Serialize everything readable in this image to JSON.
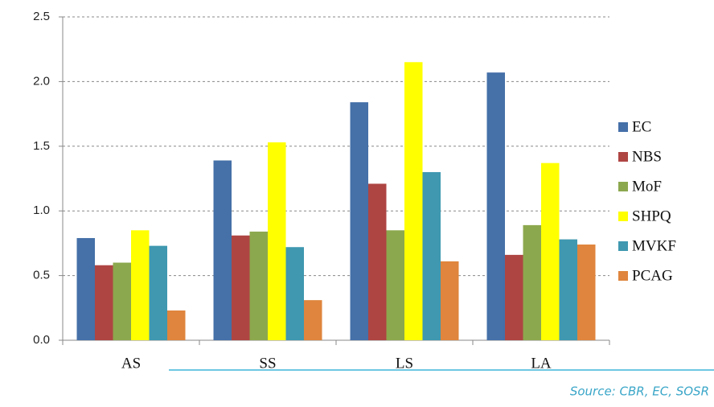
{
  "chart_data": {
    "type": "bar",
    "categories": [
      "AS",
      "SS",
      "LS",
      "LA"
    ],
    "series": [
      {
        "name": "EC",
        "color": "#4570a8",
        "values": [
          0.79,
          1.39,
          1.84,
          2.07
        ]
      },
      {
        "name": "NBS",
        "color": "#ae4543",
        "values": [
          0.58,
          0.81,
          1.21,
          0.66
        ]
      },
      {
        "name": "MoF",
        "color": "#8ca84e",
        "values": [
          0.6,
          0.84,
          0.85,
          0.89
        ]
      },
      {
        "name": "SHPQ",
        "color": "#ffff00",
        "values": [
          0.85,
          1.53,
          2.15,
          1.37
        ]
      },
      {
        "name": "MVKF",
        "color": "#3f98b0",
        "values": [
          0.73,
          0.72,
          1.3,
          0.78
        ]
      },
      {
        "name": "PCAG",
        "color": "#df853d",
        "values": [
          0.23,
          0.31,
          0.61,
          0.74
        ]
      }
    ],
    "ylim": [
      0,
      2.5
    ],
    "yticks": [
      {
        "value": 0,
        "label": "0.0"
      },
      0.5,
      {
        "value": 1,
        "label": "1.0"
      },
      1.5,
      {
        "value": 2,
        "label": "2.0"
      },
      2.5
    ],
    "grid": true,
    "legend": "right",
    "source": "Source: CBR, EC, SOSR"
  }
}
